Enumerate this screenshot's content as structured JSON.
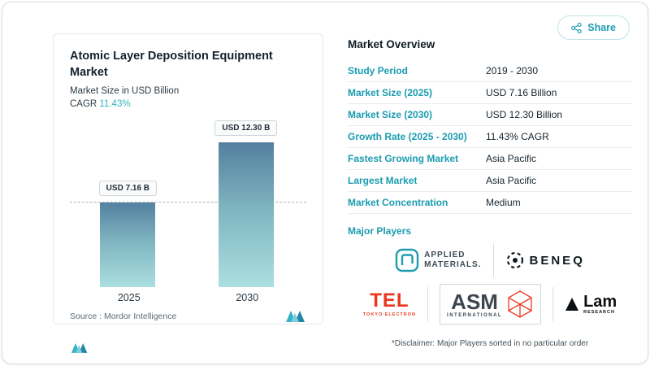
{
  "share": {
    "label": "Share"
  },
  "chart_card": {
    "title": "Atomic Layer Deposition Equipment Market",
    "subtitle": "Market Size in USD Billion",
    "cagr_label": "CAGR ",
    "cagr_value": "11.43%",
    "source_label": "Source :  Mordor Intelligence"
  },
  "chart_data": {
    "type": "bar",
    "title": "Atomic Layer Deposition Equipment Market",
    "ylabel": "Market Size in USD Billion",
    "categories": [
      "2025",
      "2030"
    ],
    "values": [
      7.16,
      12.3
    ],
    "value_labels": [
      "USD 7.16 B",
      "USD 12.30 B"
    ],
    "ylim": [
      0,
      12.3
    ],
    "reference_line_at": 7.16,
    "legend": "none",
    "grid": "off"
  },
  "overview": {
    "title": "Market Overview",
    "rows": [
      {
        "label": "Study Period",
        "value": "2019 - 2030"
      },
      {
        "label": "Market Size (2025)",
        "value": "USD 7.16 Billion"
      },
      {
        "label": "Market Size (2030)",
        "value": "USD 12.30 Billion"
      },
      {
        "label": "Growth Rate (2025 - 2030)",
        "value": "11.43% CAGR"
      },
      {
        "label": "Fastest Growing Market",
        "value": "Asia Pacific"
      },
      {
        "label": "Largest Market",
        "value": "Asia Pacific"
      },
      {
        "label": "Market Concentration",
        "value": "Medium"
      }
    ],
    "major_players_label": "Major Players",
    "players": {
      "applied": {
        "line1": "APPLIED",
        "line2": "MATERIALS."
      },
      "beneq": {
        "name": "BENEQ"
      },
      "tel": {
        "name": "TEL",
        "sub": "TOKYO ELECTRON"
      },
      "asm": {
        "name": "ASM",
        "sub": "INTERNATIONAL"
      },
      "lam": {
        "name": "Lam",
        "sub": "RESEARCH"
      }
    },
    "disclaimer": "*Disclaimer: Major Players sorted in no particular order"
  },
  "colors": {
    "accent_teal": "#1b9cb0",
    "cagr_teal": "#35b2c5",
    "bar_gradient_top": "#53809f",
    "bar_gradient_bottom": "#abdfe1",
    "tel_red": "#e8381f",
    "text_dark": "#15222c"
  }
}
